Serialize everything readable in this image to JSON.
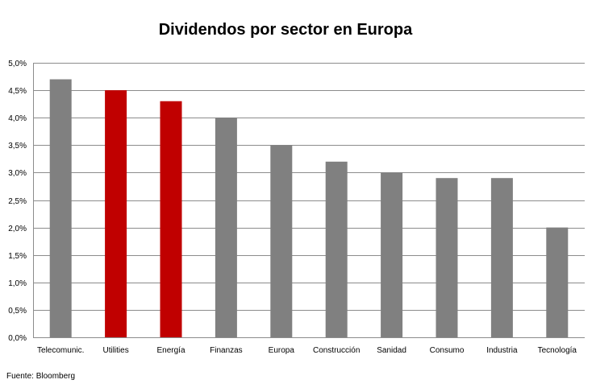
{
  "chart_data": {
    "type": "bar",
    "title": "Dividendos por sector en Europa",
    "categories": [
      "Telecomunic.",
      "Utilities",
      "Energía",
      "Finanzas",
      "Europa",
      "Construcción",
      "Sanidad",
      "Consumo",
      "Industria",
      "Tecnología"
    ],
    "values": [
      4.7,
      4.5,
      4.3,
      4.0,
      3.5,
      3.2,
      3.0,
      2.9,
      2.9,
      2.0
    ],
    "highlight": [
      false,
      true,
      true,
      false,
      false,
      false,
      false,
      false,
      false,
      false
    ],
    "colors": {
      "default": "#808080",
      "highlight": "#c00000",
      "grid": "#8c8c8c"
    },
    "ylim": [
      0,
      5
    ],
    "yticks": [
      0,
      0.5,
      1.0,
      1.5,
      2.0,
      2.5,
      3.0,
      3.5,
      4.0,
      4.5,
      5.0
    ],
    "ytick_labels": [
      "0,0%",
      "0,5%",
      "1,0%",
      "1,5%",
      "2,0%",
      "2,5%",
      "3,0%",
      "3,5%",
      "4,0%",
      "4,5%",
      "5,0%"
    ],
    "grid": true,
    "legend": "none",
    "source": "Fuente: Bloomberg"
  }
}
